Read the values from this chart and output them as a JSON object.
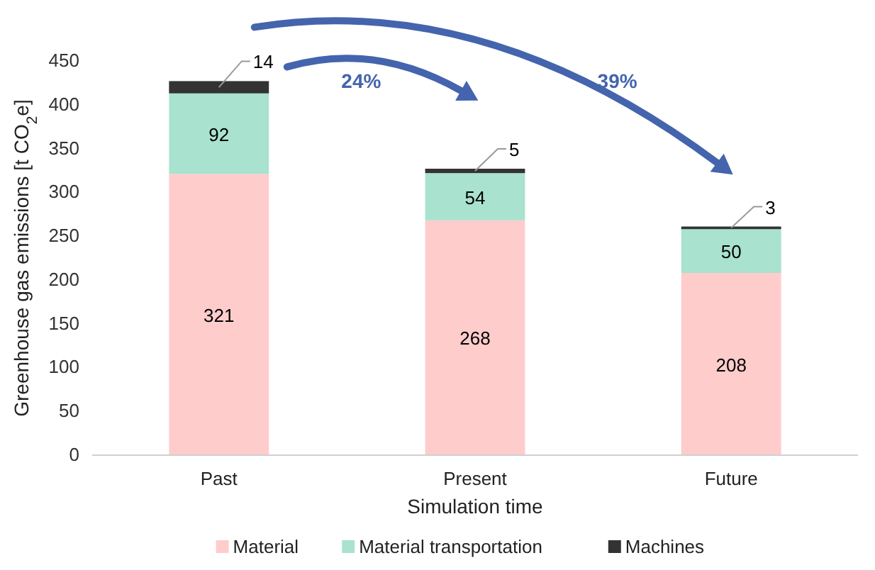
{
  "chart_data": {
    "type": "bar",
    "stacked": true,
    "xlabel": "Simulation time",
    "ylabel": "Greenhouse gas emissions [t CO$_{2}$e]",
    "categories": [
      "Past",
      "Present",
      "Future"
    ],
    "series": [
      {
        "name": "Material",
        "color": "#ffcccc",
        "values": [
          321,
          268,
          208
        ]
      },
      {
        "name": "Material transportation",
        "color": "#a9e2cf",
        "values": [
          92,
          54,
          50
        ]
      },
      {
        "name": "Machines",
        "color": "#333333",
        "values": [
          14,
          5,
          3
        ]
      }
    ],
    "ylim": [
      0,
      450
    ],
    "yticks": [
      0,
      50,
      100,
      150,
      200,
      250,
      300,
      350,
      400,
      450
    ],
    "grid": false,
    "legend": "bottom",
    "data_labels": true,
    "annotations": [
      "24%",
      "39%"
    ]
  }
}
